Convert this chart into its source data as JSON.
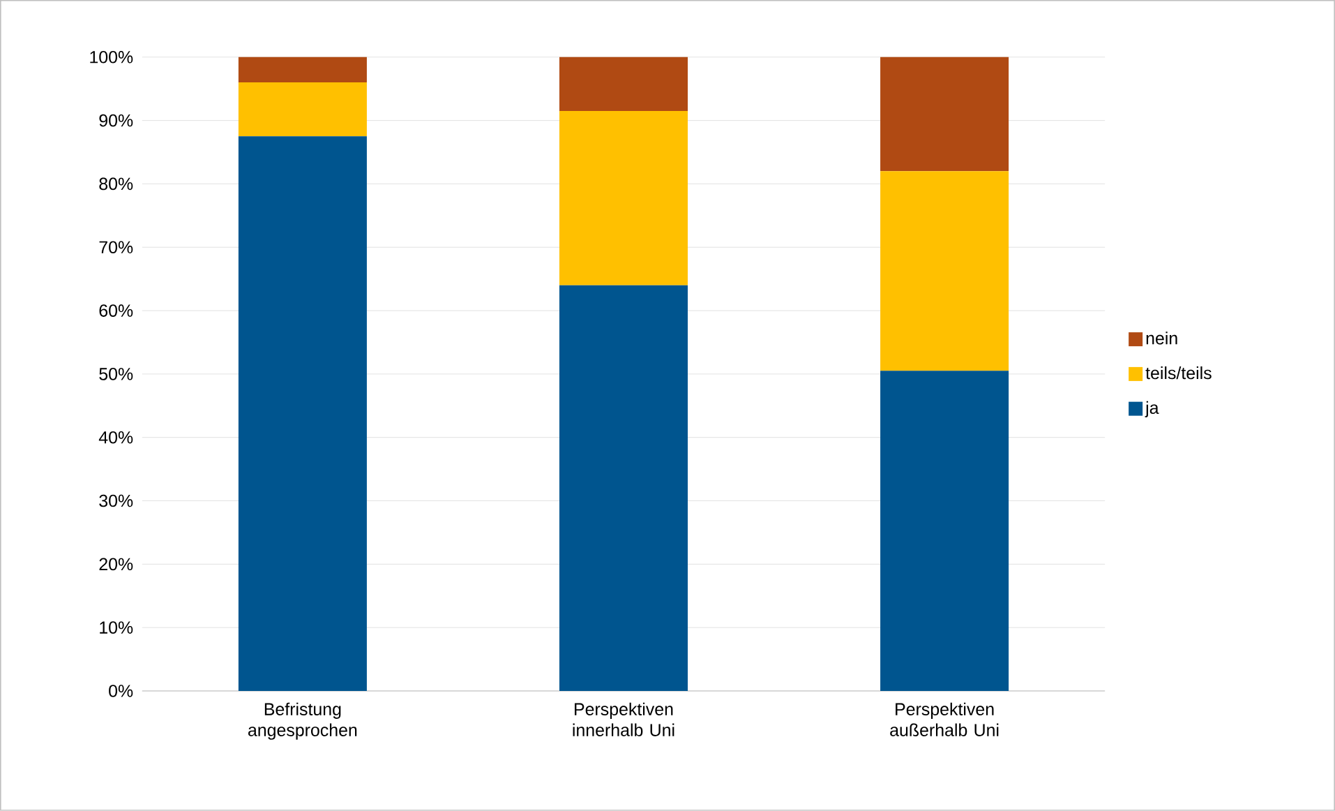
{
  "chart_data": {
    "type": "bar",
    "stacked": true,
    "categories": [
      "Befristung angesprochen",
      "Perspektiven innerhalb Uni",
      "Perspektiven außerhalb Uni"
    ],
    "series": [
      {
        "name": "ja",
        "color": "#00558f",
        "values": [
          87.5,
          64,
          50.5
        ]
      },
      {
        "name": "teils/teils",
        "color": "#ffc000",
        "values": [
          8.5,
          27.5,
          31.5
        ]
      },
      {
        "name": "nein",
        "color": "#b04a13",
        "values": [
          4,
          8.5,
          18
        ]
      }
    ],
    "ylim": [
      0,
      100
    ],
    "yticks": [
      {
        "value": 0,
        "label": "0%"
      },
      {
        "value": 10,
        "label": "10%"
      },
      {
        "value": 20,
        "label": "20%"
      },
      {
        "value": 30,
        "label": "30%"
      },
      {
        "value": 40,
        "label": "40%"
      },
      {
        "value": 50,
        "label": "50%"
      },
      {
        "value": 60,
        "label": "60%"
      },
      {
        "value": 70,
        "label": "70%"
      },
      {
        "value": 80,
        "label": "80%"
      },
      {
        "value": 90,
        "label": "90%"
      },
      {
        "value": 100,
        "label": "100%"
      }
    ],
    "grid": "y",
    "legend": "right"
  }
}
